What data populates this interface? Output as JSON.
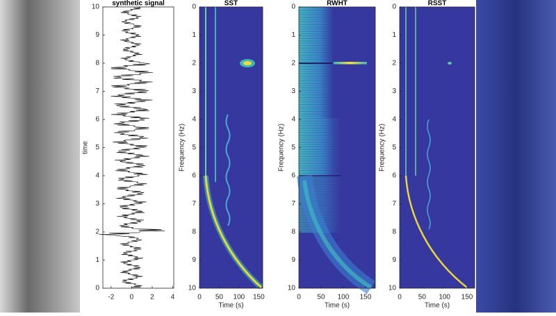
{
  "chart_data": [
    {
      "type": "line",
      "title": "synthetic signal",
      "ylabel": "time",
      "xlim": [
        -2.8,
        4.1
      ],
      "xticks": [
        -2,
        0,
        2,
        4
      ],
      "ylim": [
        0,
        10
      ],
      "yticks": [
        0,
        1,
        2,
        3,
        4,
        5,
        6,
        7,
        8,
        9,
        10
      ],
      "y_reversed": false
    },
    {
      "type": "heatmap",
      "title": "SST",
      "xlabel": "Time (s)",
      "ylabel": "Frequency (Hz)",
      "xlim": [
        0,
        160
      ],
      "xticks": [
        0,
        50,
        100,
        150
      ],
      "ylim": [
        0,
        10
      ],
      "yticks": [
        0,
        1,
        2,
        3,
        4,
        5,
        6,
        7,
        8,
        9,
        10
      ],
      "y_reversed": true
    },
    {
      "type": "heatmap",
      "title": "RWHT",
      "xlabel": "Time (s)",
      "ylabel": "Frequency (Hz)",
      "xlim": [
        0,
        172
      ],
      "xticks": [
        0,
        50,
        100,
        150
      ],
      "ylim": [
        0,
        10
      ],
      "yticks": [
        0,
        1,
        2,
        3,
        4,
        5,
        6,
        7,
        8,
        9,
        10
      ],
      "y_reversed": true
    },
    {
      "type": "heatmap",
      "title": "RSST",
      "xlabel": "Time (s)",
      "ylabel": "Frequency (Hz)",
      "xlim": [
        0,
        167
      ],
      "xticks": [
        0,
        50,
        100,
        150
      ],
      "ylim": [
        0,
        10
      ],
      "yticks": [
        0,
        1,
        2,
        3,
        4,
        5,
        6,
        7,
        8,
        9,
        10
      ],
      "y_reversed": true
    }
  ]
}
